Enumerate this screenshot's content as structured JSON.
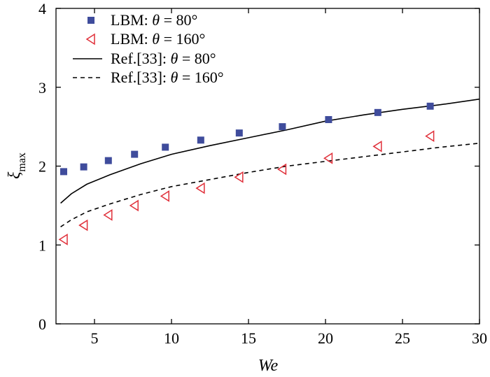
{
  "chart_data": {
    "type": "scatter",
    "xlabel": "We",
    "ylabel": "ξ",
    "ylabel_sub": "max",
    "xlim": [
      2.5,
      30
    ],
    "ylim": [
      0,
      4
    ],
    "xticks": [
      5,
      10,
      15,
      20,
      25,
      30
    ],
    "yticks": [
      0,
      1,
      2,
      3,
      4
    ],
    "grid": false,
    "legend_position": "top-left",
    "series": [
      {
        "name": "LBM: θ = 80°",
        "label_parts": [
          "LBM: ",
          "θ",
          " = 80°"
        ],
        "marker": "square",
        "color": "#3f4c9c",
        "x": [
          3.0,
          4.3,
          5.9,
          7.6,
          9.6,
          11.9,
          14.4,
          17.2,
          20.2,
          23.4,
          26.8
        ],
        "y": [
          1.93,
          1.99,
          2.07,
          2.15,
          2.24,
          2.33,
          2.42,
          2.5,
          2.59,
          2.68,
          2.76
        ]
      },
      {
        "name": "LBM: θ = 160°",
        "label_parts": [
          "LBM: ",
          "θ",
          " = 160°"
        ],
        "marker": "triangle-left",
        "color": "#e0303a",
        "x": [
          3.0,
          4.3,
          5.9,
          7.6,
          9.6,
          11.9,
          14.4,
          17.2,
          20.2,
          23.4,
          26.8
        ],
        "y": [
          1.07,
          1.25,
          1.38,
          1.5,
          1.62,
          1.72,
          1.86,
          1.96,
          2.1,
          2.25,
          2.38
        ]
      },
      {
        "name": "Ref.[33]: θ = 80°",
        "label_parts": [
          "Ref.[33]: ",
          "θ",
          " = 80°"
        ],
        "line": "solid",
        "color": "#000000",
        "x": [
          2.8,
          3.5,
          4.5,
          6,
          8,
          10,
          12.5,
          15,
          17.5,
          20,
          22.5,
          25,
          27.5,
          30
        ],
        "y": [
          1.53,
          1.65,
          1.77,
          1.89,
          2.03,
          2.15,
          2.26,
          2.36,
          2.46,
          2.57,
          2.65,
          2.72,
          2.78,
          2.85
        ]
      },
      {
        "name": "Ref.[33]: θ = 160°",
        "label_parts": [
          "Ref.[33]: ",
          "θ",
          " = 160°"
        ],
        "line": "dashed",
        "color": "#000000",
        "x": [
          2.8,
          3.5,
          4.5,
          6,
          8,
          10,
          12.5,
          15,
          17.5,
          20,
          22.5,
          25,
          27.5,
          30
        ],
        "y": [
          1.23,
          1.32,
          1.42,
          1.52,
          1.64,
          1.74,
          1.83,
          1.92,
          2.0,
          2.06,
          2.12,
          2.18,
          2.24,
          2.29
        ]
      }
    ]
  }
}
